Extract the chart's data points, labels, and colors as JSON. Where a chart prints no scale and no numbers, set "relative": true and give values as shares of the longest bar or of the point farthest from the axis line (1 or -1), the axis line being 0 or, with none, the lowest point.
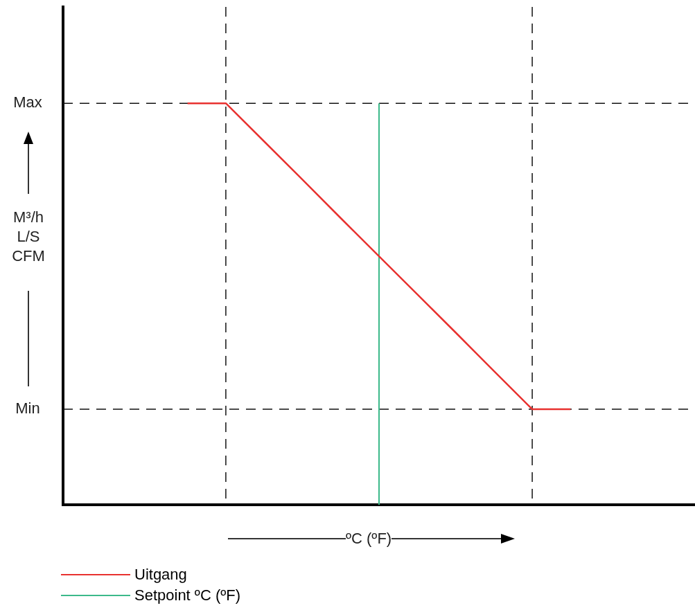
{
  "chart_data": {
    "type": "line",
    "xlabel": "ºC (ºF)",
    "relative": true,
    "categories": [
      null,
      null,
      null,
      null,
      null,
      null,
      null,
      null,
      null,
      null,
      null
    ],
    "annotations": [
      "Max",
      "Min",
      "M³/h\nL/S\nCFM"
    ],
    "legend": "bottom left",
    "marker": "none",
    "series": [
      {
        "name": "Uitgang",
        "color": "#e8312f",
        "values": [
          1,
          1,
          0.905,
          0.81,
          0.714,
          0.619,
          0.524,
          0.429,
          0.333,
          0.238,
          0.238
        ]
      }
    ],
    "ref_lines": [
      {
        "axis": "x",
        "label": "Setpoint ºC (ºF)",
        "color": "#3cb98a",
        "line_style": "solid"
      }
    ]
  }
}
